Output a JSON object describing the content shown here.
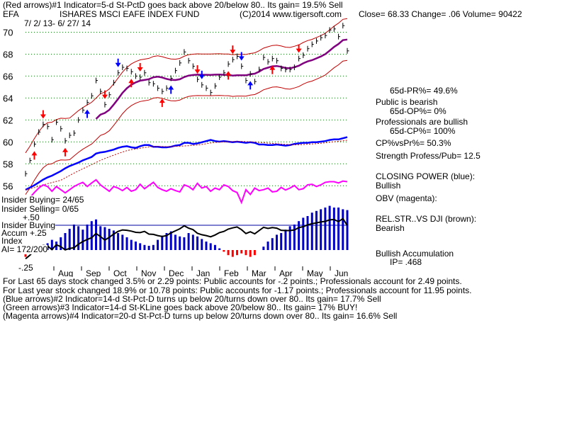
{
  "header": {
    "line1": "(Red arrows)#1 Indicator=5-d St-PctD goes back above 20/below 80.. Its gain= 19.5% Sell",
    "ticker": "EFA",
    "fund_name": "ISHARES MSCI EAFE INDEX FUND",
    "copyright": "(C)2014 www.tigersoft.com",
    "quote": "Close=  68.33  Change= .06 Volume= 90422",
    "date_range": "7/ 2/ 13-  6/ 27/ 14"
  },
  "right_panel": {
    "pr65": "65d-PR%= 49.6%",
    "public": "Public is bearish",
    "op65": "65d-OP%= 0%",
    "prof": "Professionals are bullish",
    "cp65": "65d-CP%= 100%",
    "cpvspr": "CP%vsPr%=  50.3%",
    "strength": "Strength Profess/Pub= 12.5",
    "closing_power": "CLOSING POWER (blue):",
    "closing_power_state": "Bullish",
    "obv": "OBV (magenta):",
    "relstr": "REL.STR..VS DJI (brown):",
    "relstr_state": "Bearish",
    "accum": "Bullish Accumulation",
    "ip": "IP=  .468"
  },
  "left_panel": {
    "insider_buying": "Insider Buying= 24/65",
    "insider_selling": "Insider Selling= 0/65",
    "plus50": "+.50",
    "insider_buying2": "Insider Buying",
    "accum": "Accum  +.25",
    "index": "Index",
    "ai": "AI= 172/200",
    "minus25": "-.25"
  },
  "footer": {
    "line1": "For Last 65 days stock changed  3.5% or  2.29 points:  Public accounts for -.2 points.;  Professionals account for  2.49 points.",
    "line2": "For Last year stock changed  18.9% or  10.78 points:  Public accounts for -1.17 points.;  Professionals account for  11.95 points.",
    "line3": "(Blue arrows)#2 Indicator=14-d St-Pct-D turns up below 20/turns down over 80.. Its gain= 17.7% Sell",
    "line4": "(Green arrows)#3 Indicator=14-d St-KLine goes back above 20/below 80.. Its gain= 17% BUY!",
    "line5": "(Magenta arrows)#4 Indicator=20-d St-Pct-D turns up below 20/turns down over 80.. Its gain= 16.6% Sell"
  },
  "colors": {
    "price": "#000000",
    "band": "#c00000",
    "ma": "#800080",
    "closing_power": "#0000ff",
    "obv": "#ff00ff",
    "accum_bars": "#0000c0",
    "grid": "#008000"
  },
  "chart_data": {
    "type": "line",
    "title": "ISHARES MSCI EAFE INDEX FUND",
    "ylim": [
      55.5,
      71
    ],
    "y_ticks": [
      56,
      58,
      60,
      62,
      64,
      66,
      68,
      70
    ],
    "x_ticks": [
      "Aug",
      "Sep",
      "Oct",
      "Nov",
      "Dec",
      "Jan",
      "Feb",
      "Mar",
      "Apr",
      "May",
      "Jun"
    ],
    "close": [
      57.1,
      58.3,
      59.8,
      60.9,
      61.6,
      61.4,
      60.2,
      61.8,
      61.2,
      60.1,
      60.6,
      60.8,
      62.0,
      62.9,
      63.6,
      64.2,
      65.6,
      64.6,
      63.4,
      64.3,
      65.4,
      66.3,
      66.8,
      66.7,
      66.4,
      66.0,
      65.9,
      66.3,
      65.4,
      65.3,
      64.9,
      64.6,
      64.9,
      65.8,
      66.5,
      67.2,
      68.2,
      67.4,
      66.9,
      65.7,
      65.2,
      64.9,
      64.5,
      65.1,
      65.9,
      66.3,
      67.1,
      67.5,
      67.8,
      66.9,
      65.6,
      66.2,
      65.5,
      66.6,
      67.7,
      67.3,
      67.6,
      67.4,
      66.7,
      66.6,
      66.6,
      66.8,
      67.6,
      67.9,
      68.5,
      68.9,
      69.2,
      69.5,
      69.7,
      70.2,
      70.3,
      69.6,
      70.6,
      68.3
    ],
    "closing_power": [
      0.0,
      0.04,
      0.08,
      0.13,
      0.18,
      0.22,
      0.25,
      0.29,
      0.33,
      0.38,
      0.42,
      0.45,
      0.48,
      0.52,
      0.55,
      0.58,
      0.64,
      0.66,
      0.67,
      0.69,
      0.71,
      0.74,
      0.76,
      0.77,
      0.75,
      0.74,
      0.77,
      0.79,
      0.79,
      0.76,
      0.76,
      0.75,
      0.75,
      0.76,
      0.78,
      0.79,
      0.83,
      0.83,
      0.81,
      0.82,
      0.84,
      0.86,
      0.88,
      0.86,
      0.85,
      0.86,
      0.85,
      0.84,
      0.85,
      0.84,
      0.83,
      0.84,
      0.83,
      0.8,
      0.8,
      0.79,
      0.79,
      0.8,
      0.79,
      0.78,
      0.79,
      0.81,
      0.82,
      0.83,
      0.83,
      0.84,
      0.84,
      0.85,
      0.86,
      0.88,
      0.89,
      0.89,
      0.91,
      0.93
    ],
    "obv": [
      0.0,
      0.2,
      0.36,
      0.5,
      0.6,
      0.55,
      0.4,
      0.55,
      0.45,
      0.35,
      0.45,
      0.55,
      0.62,
      0.68,
      0.55,
      0.66,
      0.76,
      0.6,
      0.5,
      0.4,
      0.55,
      0.5,
      0.42,
      0.52,
      0.4,
      0.45,
      0.62,
      0.48,
      0.58,
      0.68,
      0.52,
      0.45,
      0.4,
      0.48,
      0.42,
      0.38,
      0.6,
      0.55,
      0.45,
      0.65,
      0.5,
      0.55,
      0.4,
      0.5,
      0.45,
      0.6,
      0.55,
      0.42,
      0.36,
      0.05,
      0.45,
      0.3,
      0.5,
      0.42,
      0.45,
      0.5,
      0.38,
      0.4,
      0.52,
      0.44,
      0.5,
      0.58,
      0.45,
      0.48,
      0.6,
      0.62,
      0.55,
      0.6,
      0.68,
      0.7,
      0.7,
      0.66,
      0.72,
      0.7
    ],
    "accum_index": [
      -0.08,
      -0.05,
      -0.02,
      0.02,
      0.05,
      0.08,
      0.12,
      0.1,
      0.15,
      0.2,
      0.25,
      0.3,
      0.28,
      0.24,
      0.3,
      0.34,
      0.36,
      0.28,
      0.27,
      0.25,
      0.23,
      0.2,
      0.18,
      0.15,
      0.12,
      0.1,
      0.08,
      0.06,
      0.05,
      0.06,
      0.12,
      0.17,
      0.2,
      0.22,
      0.18,
      0.16,
      0.15,
      0.2,
      0.18,
      0.16,
      0.13,
      0.1,
      0.08,
      0.06,
      0.02,
      -0.02,
      -0.06,
      -0.08,
      -0.06,
      -0.04,
      -0.06,
      -0.08,
      -0.06,
      0.0,
      0.04,
      0.1,
      0.14,
      0.18,
      0.2,
      0.24,
      0.28,
      0.3,
      0.34,
      0.38,
      0.4,
      0.44,
      0.46,
      0.48,
      0.5,
      0.52,
      0.5,
      0.5,
      0.48,
      0.47
    ]
  }
}
